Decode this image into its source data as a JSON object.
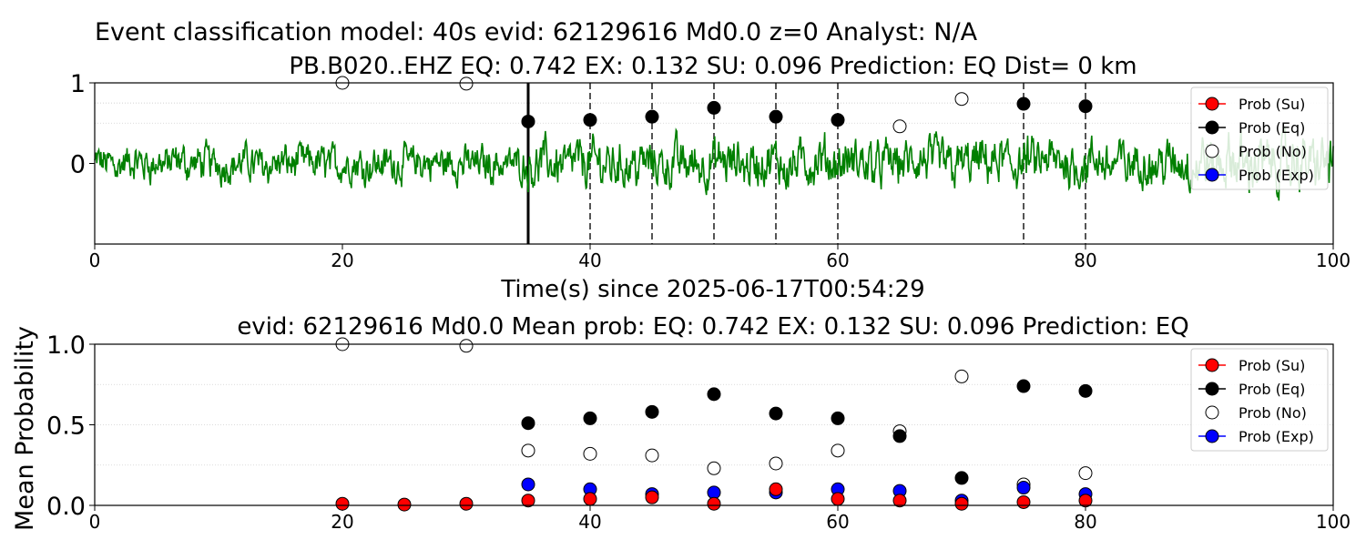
{
  "figure": {
    "suptitle": "Event classification model: 40s evid: 62129616 Md0.0 z=0 Analyst: N/A"
  },
  "chart_data": [
    {
      "type": "line",
      "title": "PB.B020..EHZ   EQ: 0.742  EX: 0.132  SU: 0.096   Prediction: EQ    Dist= 0 km",
      "xlabel": "Time(s) since 2025-06-17T00:54:29",
      "ylabel": "",
      "xlim": [
        0,
        100
      ],
      "ylim": [
        -1,
        1
      ],
      "xticks": [
        "0",
        "20",
        "40",
        "60",
        "80",
        "100"
      ],
      "yticks": [
        "0",
        "1"
      ],
      "waveform_color": "#008000",
      "solid_marker_x": 35,
      "dashed_markers_x": [
        40,
        45,
        50,
        55,
        60,
        75,
        80
      ],
      "series": [
        {
          "name": "Prob (Su)",
          "color": "#ff0000",
          "points": []
        },
        {
          "name": "Prob (Eq)",
          "color": "#000000",
          "points": [
            [
              35,
              0.52
            ],
            [
              40,
              0.54
            ],
            [
              45,
              0.58
            ],
            [
              50,
              0.69
            ],
            [
              55,
              0.58
            ],
            [
              60,
              0.54
            ],
            [
              75,
              0.74
            ],
            [
              80,
              0.71
            ]
          ]
        },
        {
          "name": "Prob (No)",
          "color": "#ffffff",
          "points": [
            [
              20,
              1.0
            ],
            [
              30,
              0.99
            ],
            [
              65,
              0.46
            ],
            [
              70,
              0.8
            ]
          ]
        },
        {
          "name": "Prob (Exp)",
          "color": "#0000ff",
          "points": []
        }
      ],
      "legend_position": "top-right",
      "grid": "horizontal dotted"
    },
    {
      "type": "scatter",
      "title": "evid: 62129616  Md0.0   Mean prob:   EQ: 0.742  EX: 0.132  SU: 0.096   Prediction: EQ",
      "xlabel": "",
      "ylabel": "Mean Probability",
      "xlim": [
        0,
        100
      ],
      "ylim": [
        0,
        1
      ],
      "xticks": [
        "0",
        "20",
        "40",
        "60",
        "80",
        "100"
      ],
      "yticks": [
        "0.0",
        "0.5",
        "1.0"
      ],
      "x": [
        20,
        25,
        30,
        35,
        40,
        45,
        50,
        55,
        60,
        65,
        70,
        75,
        80
      ],
      "series": [
        {
          "name": "Prob (Su)",
          "color": "#ff0000",
          "values": [
            0.01,
            0.005,
            0.01,
            0.03,
            0.04,
            0.05,
            0.01,
            0.1,
            0.04,
            0.03,
            0.01,
            0.02,
            0.03
          ]
        },
        {
          "name": "Prob (Eq)",
          "color": "#000000",
          "values": [
            0.0,
            0.0,
            0.0,
            0.51,
            0.54,
            0.58,
            0.69,
            0.57,
            0.54,
            0.43,
            0.17,
            0.74,
            0.71
          ]
        },
        {
          "name": "Prob (No)",
          "color": "#ffffff",
          "values": [
            1.0,
            0.0,
            0.99,
            0.34,
            0.32,
            0.31,
            0.23,
            0.26,
            0.34,
            0.46,
            0.8,
            0.13,
            0.2
          ]
        },
        {
          "name": "Prob (Exp)",
          "color": "#0000ff",
          "values": [
            0.0,
            0.0,
            0.0,
            0.13,
            0.1,
            0.07,
            0.08,
            0.08,
            0.1,
            0.09,
            0.03,
            0.11,
            0.07
          ]
        }
      ],
      "legend_position": "top-right",
      "grid": "horizontal dotted"
    }
  ]
}
